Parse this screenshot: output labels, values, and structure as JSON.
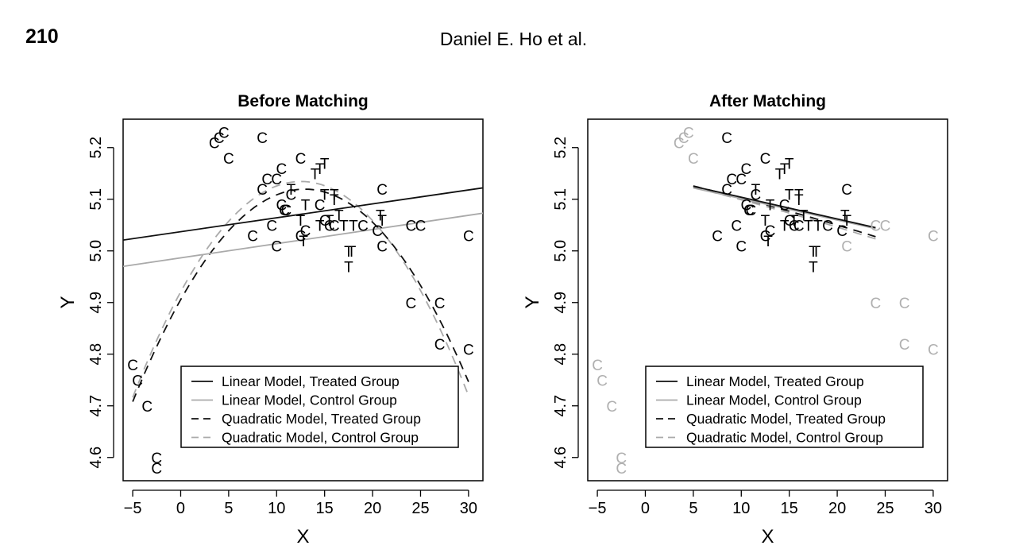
{
  "page": {
    "number": "210",
    "running_head": "Daniel E. Ho et al."
  },
  "colors": {
    "treated": "#000000",
    "control_before": "#000000",
    "control_unmatched": "#b0b0b0",
    "linear_treated": "#111111",
    "linear_control": "#aaaaaa",
    "quadratic_treated": "#111111",
    "quadratic_control": "#aaaaaa"
  },
  "chart_data": [
    {
      "type": "scatter",
      "title": "Before Matching",
      "xlabel": "X",
      "ylabel": "Y",
      "xlim": [
        -6,
        31.5
      ],
      "ylim": [
        4.555,
        5.255
      ],
      "xticks": [
        -5,
        0,
        5,
        10,
        15,
        20,
        25,
        30
      ],
      "yticks": [
        4.6,
        4.7,
        4.8,
        4.9,
        5.0,
        5.1,
        5.2
      ],
      "xtick_labels": [
        "−5",
        "0",
        "5",
        "10",
        "15",
        "20",
        "25",
        "30"
      ],
      "ytick_labels": [
        "4.6",
        "4.7",
        "4.8",
        "4.9",
        "5.0",
        "5.1",
        "5.2"
      ],
      "grid": false,
      "legend_position": "bottom-right",
      "legend": [
        {
          "label": "Linear Model, Treated Group",
          "color": "#111111",
          "dashed": false
        },
        {
          "label": "Linear Model, Control Group",
          "color": "#aaaaaa",
          "dashed": false
        },
        {
          "label": "Quadratic Model, Treated Group",
          "color": "#111111",
          "dashed": true
        },
        {
          "label": "Quadratic Model, Control Group",
          "color": "#aaaaaa",
          "dashed": true
        }
      ],
      "treated_points": [
        [
          11.5,
          5.12
        ],
        [
          12.5,
          5.06
        ],
        [
          13.0,
          5.09
        ],
        [
          14.0,
          5.15
        ],
        [
          14.5,
          5.16
        ],
        [
          15.0,
          5.17
        ],
        [
          15.0,
          5.11
        ],
        [
          15.5,
          5.06
        ],
        [
          16.0,
          5.11
        ],
        [
          16.0,
          5.1
        ],
        [
          16.5,
          5.07
        ],
        [
          17.0,
          5.05
        ],
        [
          17.5,
          5.0
        ],
        [
          17.5,
          4.97
        ],
        [
          17.8,
          5.0
        ],
        [
          18.0,
          5.05
        ],
        [
          20.8,
          5.07
        ],
        [
          21.0,
          5.06
        ],
        [
          12.8,
          5.02
        ],
        [
          14.5,
          5.05
        ]
      ],
      "control_points": [
        [
          -5.0,
          4.78
        ],
        [
          -4.5,
          4.75
        ],
        [
          -3.5,
          4.7
        ],
        [
          -2.5,
          4.6
        ],
        [
          -2.5,
          4.58
        ],
        [
          4.0,
          5.22
        ],
        [
          3.5,
          5.21
        ],
        [
          4.5,
          5.23
        ],
        [
          5.0,
          5.18
        ],
        [
          8.5,
          5.22
        ],
        [
          9.0,
          5.14
        ],
        [
          8.5,
          5.12
        ],
        [
          10.0,
          5.14
        ],
        [
          10.5,
          5.16
        ],
        [
          11.5,
          5.11
        ],
        [
          12.5,
          5.18
        ],
        [
          10.5,
          5.09
        ],
        [
          11.0,
          5.08
        ],
        [
          10.8,
          5.08
        ],
        [
          9.5,
          5.05
        ],
        [
          7.5,
          5.03
        ],
        [
          10.0,
          5.01
        ],
        [
          12.5,
          5.03
        ],
        [
          13.0,
          5.04
        ],
        [
          14.5,
          5.09
        ],
        [
          15.0,
          5.06
        ],
        [
          16.0,
          5.05
        ],
        [
          15.5,
          5.05
        ],
        [
          19.0,
          5.05
        ],
        [
          20.5,
          5.04
        ],
        [
          21.0,
          5.01
        ],
        [
          21.0,
          5.12
        ],
        [
          24.0,
          5.05
        ],
        [
          25.0,
          5.05
        ],
        [
          24.0,
          4.9
        ],
        [
          27.0,
          4.9
        ],
        [
          27.0,
          4.82
        ],
        [
          30.0,
          4.81
        ],
        [
          30.0,
          5.03
        ]
      ],
      "linear_treated": {
        "x": [
          -6,
          31.5
        ],
        "y": [
          5.021,
          5.122
        ]
      },
      "linear_control": {
        "x": [
          -6,
          31.5
        ],
        "y": [
          4.97,
          5.073
        ]
      },
      "quadratic_treated": {
        "x_range": [
          -5,
          30
        ],
        "coef": [
          4.9055,
          0.0331,
          -0.00128
        ]
      },
      "quadratic_control": {
        "x_range": [
          -5,
          30
        ],
        "coef": [
          4.9207,
          0.0341,
          -0.00136
        ]
      }
    },
    {
      "type": "scatter",
      "title": "After Matching",
      "xlabel": "X",
      "ylabel": "Y",
      "xlim": [
        -6,
        31.5
      ],
      "ylim": [
        4.555,
        5.255
      ],
      "xticks": [
        -5,
        0,
        5,
        10,
        15,
        20,
        25,
        30
      ],
      "yticks": [
        4.6,
        4.7,
        4.8,
        4.9,
        5.0,
        5.1,
        5.2
      ],
      "xtick_labels": [
        "−5",
        "0",
        "5",
        "10",
        "15",
        "20",
        "25",
        "30"
      ],
      "ytick_labels": [
        "4.6",
        "4.7",
        "4.8",
        "4.9",
        "5.0",
        "5.1",
        "5.2"
      ],
      "grid": false,
      "legend_position": "bottom-right",
      "legend": [
        {
          "label": "Linear Model, Treated Group",
          "color": "#111111",
          "dashed": false
        },
        {
          "label": "Linear Model, Control Group",
          "color": "#aaaaaa",
          "dashed": false
        },
        {
          "label": "Quadratic Model, Treated Group",
          "color": "#111111",
          "dashed": true
        },
        {
          "label": "Quadratic Model, Control Group",
          "color": "#aaaaaa",
          "dashed": true
        }
      ],
      "treated_points": [
        [
          11.5,
          5.12
        ],
        [
          12.5,
          5.06
        ],
        [
          13.0,
          5.09
        ],
        [
          14.0,
          5.15
        ],
        [
          14.5,
          5.16
        ],
        [
          15.0,
          5.17
        ],
        [
          15.0,
          5.11
        ],
        [
          15.5,
          5.06
        ],
        [
          16.0,
          5.11
        ],
        [
          16.0,
          5.1
        ],
        [
          16.5,
          5.07
        ],
        [
          17.0,
          5.05
        ],
        [
          17.5,
          5.0
        ],
        [
          17.5,
          4.97
        ],
        [
          17.8,
          5.0
        ],
        [
          18.0,
          5.05
        ],
        [
          20.8,
          5.07
        ],
        [
          21.0,
          5.06
        ],
        [
          12.8,
          5.02
        ],
        [
          14.5,
          5.05
        ]
      ],
      "control_matched_points": [
        [
          8.5,
          5.22
        ],
        [
          9.0,
          5.14
        ],
        [
          8.5,
          5.12
        ],
        [
          10.0,
          5.14
        ],
        [
          10.5,
          5.16
        ],
        [
          11.5,
          5.11
        ],
        [
          12.5,
          5.18
        ],
        [
          10.5,
          5.09
        ],
        [
          11.0,
          5.08
        ],
        [
          10.8,
          5.08
        ],
        [
          9.5,
          5.05
        ],
        [
          7.5,
          5.03
        ],
        [
          10.0,
          5.01
        ],
        [
          12.5,
          5.03
        ],
        [
          13.0,
          5.04
        ],
        [
          14.5,
          5.09
        ],
        [
          15.0,
          5.06
        ],
        [
          16.0,
          5.05
        ],
        [
          15.5,
          5.05
        ],
        [
          19.0,
          5.05
        ],
        [
          20.5,
          5.04
        ],
        [
          21.0,
          5.12
        ]
      ],
      "control_unmatched_points": [
        [
          -5.0,
          4.78
        ],
        [
          -4.5,
          4.75
        ],
        [
          -3.5,
          4.7
        ],
        [
          -2.5,
          4.6
        ],
        [
          -2.5,
          4.58
        ],
        [
          4.0,
          5.22
        ],
        [
          3.5,
          5.21
        ],
        [
          4.5,
          5.23
        ],
        [
          5.0,
          5.18
        ],
        [
          21.0,
          5.01
        ],
        [
          24.0,
          5.05
        ],
        [
          25.0,
          5.05
        ],
        [
          24.0,
          4.9
        ],
        [
          27.0,
          4.9
        ],
        [
          27.0,
          4.82
        ],
        [
          30.0,
          4.81
        ],
        [
          30.0,
          5.03
        ]
      ],
      "linear_treated": {
        "x": [
          5,
          24
        ],
        "y": [
          5.125,
          5.045
        ]
      },
      "linear_control": {
        "x": [
          5,
          24
        ],
        "y": [
          5.122,
          5.043
        ]
      },
      "quadratic_treated": {
        "x_range": [
          5,
          24
        ],
        "coef": [
          5.148,
          -0.0043,
          -3e-05
        ]
      },
      "quadratic_control": {
        "x_range": [
          5,
          24
        ],
        "coef": [
          5.146,
          -0.0044,
          -3e-05
        ]
      }
    }
  ]
}
